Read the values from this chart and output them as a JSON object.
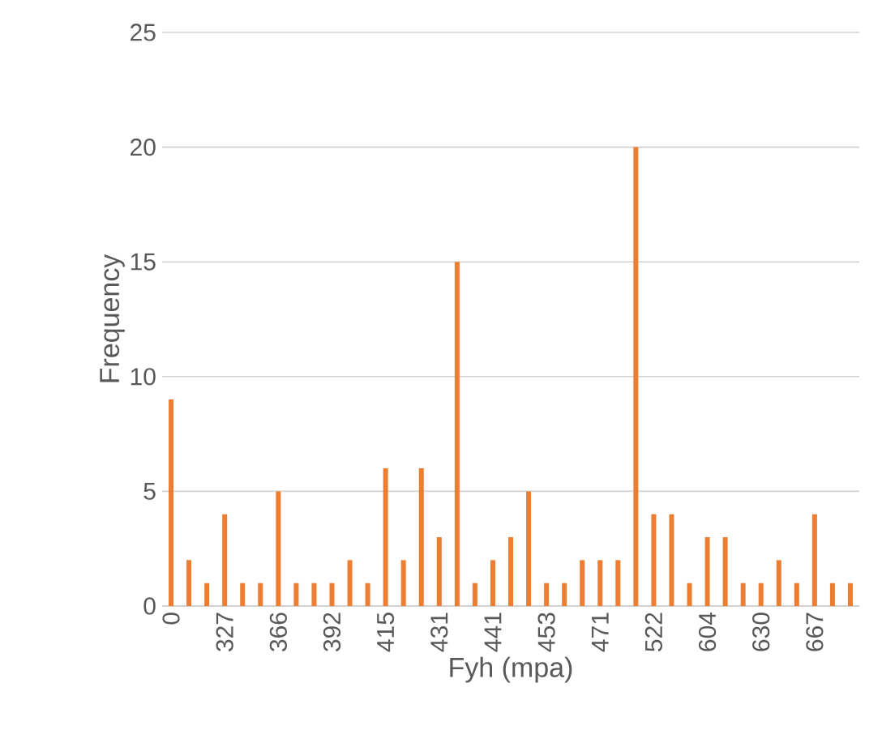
{
  "chart_data": {
    "type": "bar",
    "xlabel": "Fyh (mpa)",
    "ylabel": "Frequency",
    "categories": [
      "0",
      null,
      null,
      "327",
      null,
      null,
      "366",
      null,
      null,
      "392",
      null,
      null,
      "415",
      null,
      null,
      "431",
      null,
      null,
      "441",
      null,
      null,
      "453",
      null,
      null,
      "471",
      null,
      null,
      "522",
      null,
      null,
      "604",
      null,
      null,
      "630",
      null,
      null,
      "667",
      null,
      null
    ],
    "values": [
      9,
      2,
      1,
      4,
      1,
      1,
      5,
      1,
      1,
      1,
      2,
      1,
      6,
      2,
      6,
      3,
      15,
      1,
      2,
      3,
      5,
      1,
      1,
      2,
      2,
      2,
      20,
      4,
      4,
      1,
      3,
      3,
      1,
      1,
      2,
      1,
      4,
      1,
      1
    ],
    "color": "#ed7d31",
    "ylim": [
      0,
      25
    ],
    "yticks": [
      0,
      5,
      10,
      15,
      20,
      25
    ],
    "grid": "y"
  }
}
